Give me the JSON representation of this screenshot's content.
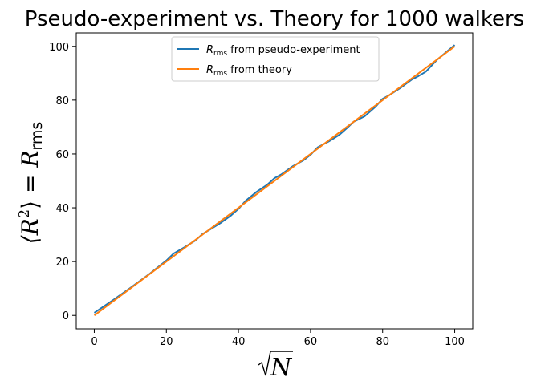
{
  "chart_data": {
    "type": "line",
    "title": "Pseudo-experiment vs. Theory for 1000 walkers",
    "xlabel": "√N",
    "ylabel": "⟨R²⟩ = Rrms",
    "xlim": [
      -5,
      105
    ],
    "ylim": [
      -5,
      105
    ],
    "xticks": [
      0,
      20,
      40,
      60,
      80,
      100
    ],
    "yticks": [
      0,
      20,
      40,
      60,
      80,
      100
    ],
    "grid": false,
    "legend_position": "top-center",
    "series": [
      {
        "name": "Rrms from pseudo-experiment",
        "color": "#1f77b4",
        "x": [
          0,
          5,
          10,
          15,
          20,
          22,
          25,
          28,
          30,
          35,
          38,
          40,
          42,
          45,
          48,
          50,
          52,
          55,
          58,
          60,
          62,
          65,
          68,
          70,
          72,
          75,
          78,
          80,
          82,
          85,
          88,
          90,
          92,
          95,
          98,
          100
        ],
        "y": [
          1,
          5.5,
          10.2,
          15.1,
          20.4,
          23,
          25.3,
          27.8,
          30.2,
          34.3,
          37.2,
          39.6,
          42.6,
          45.9,
          48.6,
          51,
          52.5,
          55.4,
          57.6,
          59.7,
          62.5,
          64.6,
          67.1,
          69.5,
          72,
          74,
          77.5,
          80.5,
          82,
          84.6,
          87.6,
          89,
          90.6,
          94.9,
          98.3,
          100.5
        ]
      },
      {
        "name": "Rrms from theory",
        "color": "#ff7f0e",
        "x": [
          0,
          100
        ],
        "y": [
          0,
          100
        ]
      }
    ]
  },
  "legend": {
    "entries": [
      {
        "sym": "R",
        "sub": "rms",
        "rest": " from pseudo-experiment"
      },
      {
        "sym": "R",
        "sub": "rms",
        "rest": " from theory"
      }
    ]
  }
}
